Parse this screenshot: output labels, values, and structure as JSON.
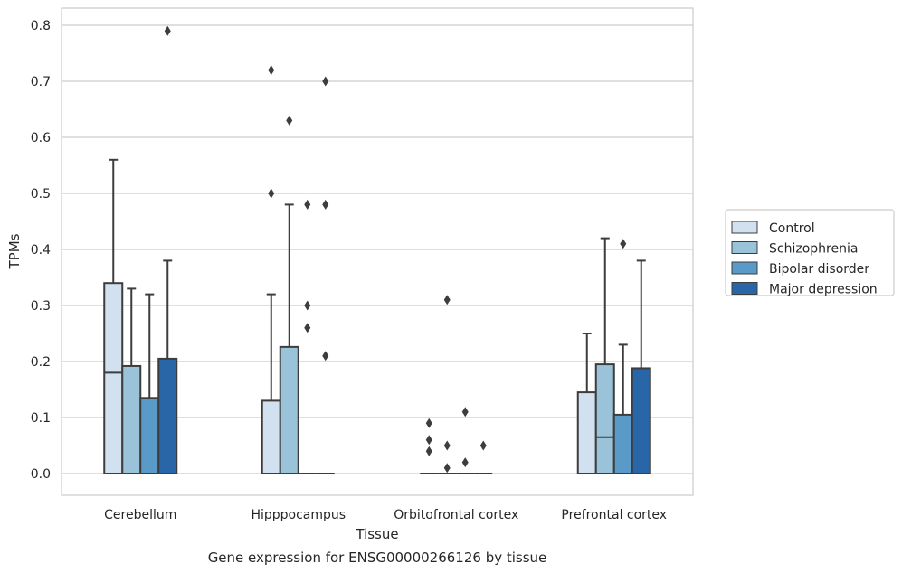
{
  "chart_data": {
    "type": "box",
    "xlabel": "Tissue",
    "ylabel": "TPMs",
    "caption": "Gene expression for ENSG00000266126 by tissue",
    "ylim": [
      -0.04,
      0.83
    ],
    "yticks": [
      0.0,
      0.1,
      0.2,
      0.3,
      0.4,
      0.5,
      0.6,
      0.7,
      0.8
    ],
    "ytick_labels": [
      "0.0",
      "0.1",
      "0.2",
      "0.3",
      "0.4",
      "0.5",
      "0.6",
      "0.7",
      "0.8"
    ],
    "grid": "horizontal",
    "legend_position": "right",
    "categories": [
      "Cerebellum",
      "Hipppocampus",
      "Orbitofrontal cortex",
      "Prefrontal cortex"
    ],
    "series": [
      {
        "name": "Control",
        "color": "#d1e1ef",
        "boxes": [
          {
            "q1": 0.0,
            "median": 0.18,
            "q3": 0.34,
            "whisker_low": 0.0,
            "whisker_high": 0.56,
            "outliers": []
          },
          {
            "q1": 0.0,
            "median": 0.0,
            "q3": 0.13,
            "whisker_low": 0.0,
            "whisker_high": 0.32,
            "outliers": [
              0.5,
              0.72
            ]
          },
          {
            "q1": 0.0,
            "median": 0.0,
            "q3": 0.0,
            "whisker_low": 0.0,
            "whisker_high": 0.0,
            "outliers": [
              0.04,
              0.06,
              0.09
            ]
          },
          {
            "q1": 0.0,
            "median": 0.0,
            "q3": 0.145,
            "whisker_low": 0.0,
            "whisker_high": 0.25,
            "outliers": []
          }
        ]
      },
      {
        "name": "Schizophrenia",
        "color": "#9ac3da",
        "boxes": [
          {
            "q1": 0.0,
            "median": 0.0,
            "q3": 0.192,
            "whisker_low": 0.0,
            "whisker_high": 0.33,
            "outliers": []
          },
          {
            "q1": 0.0,
            "median": 0.0,
            "q3": 0.226,
            "whisker_low": 0.0,
            "whisker_high": 0.48,
            "outliers": [
              0.63
            ]
          },
          {
            "q1": 0.0,
            "median": 0.0,
            "q3": 0.0,
            "whisker_low": 0.0,
            "whisker_high": 0.0,
            "outliers": [
              0.01,
              0.05,
              0.31
            ]
          },
          {
            "q1": 0.0,
            "median": 0.065,
            "q3": 0.195,
            "whisker_low": 0.0,
            "whisker_high": 0.42,
            "outliers": []
          }
        ]
      },
      {
        "name": "Bipolar disorder",
        "color": "#5a9ac9",
        "boxes": [
          {
            "q1": 0.0,
            "median": 0.0,
            "q3": 0.135,
            "whisker_low": 0.0,
            "whisker_high": 0.32,
            "outliers": []
          },
          {
            "q1": 0.0,
            "median": 0.0,
            "q3": 0.0,
            "whisker_low": 0.0,
            "whisker_high": 0.0,
            "outliers": [
              0.26,
              0.3,
              0.48
            ]
          },
          {
            "q1": 0.0,
            "median": 0.0,
            "q3": 0.0,
            "whisker_low": 0.0,
            "whisker_high": 0.0,
            "outliers": [
              0.02,
              0.11
            ]
          },
          {
            "q1": 0.0,
            "median": 0.0,
            "q3": 0.105,
            "whisker_low": 0.0,
            "whisker_high": 0.23,
            "outliers": [
              0.41
            ]
          }
        ]
      },
      {
        "name": "Major depression",
        "color": "#2866a8",
        "boxes": [
          {
            "q1": 0.0,
            "median": 0.0,
            "q3": 0.205,
            "whisker_low": 0.0,
            "whisker_high": 0.38,
            "outliers": [
              0.79
            ]
          },
          {
            "q1": 0.0,
            "median": 0.0,
            "q3": 0.0,
            "whisker_low": 0.0,
            "whisker_high": 0.0,
            "outliers": [
              0.21,
              0.48,
              0.7
            ]
          },
          {
            "q1": 0.0,
            "median": 0.0,
            "q3": 0.0,
            "whisker_low": 0.0,
            "whisker_high": 0.0,
            "outliers": [
              0.05
            ]
          },
          {
            "q1": 0.0,
            "median": 0.0,
            "q3": 0.188,
            "whisker_low": 0.0,
            "whisker_high": 0.38,
            "outliers": []
          }
        ]
      }
    ]
  }
}
